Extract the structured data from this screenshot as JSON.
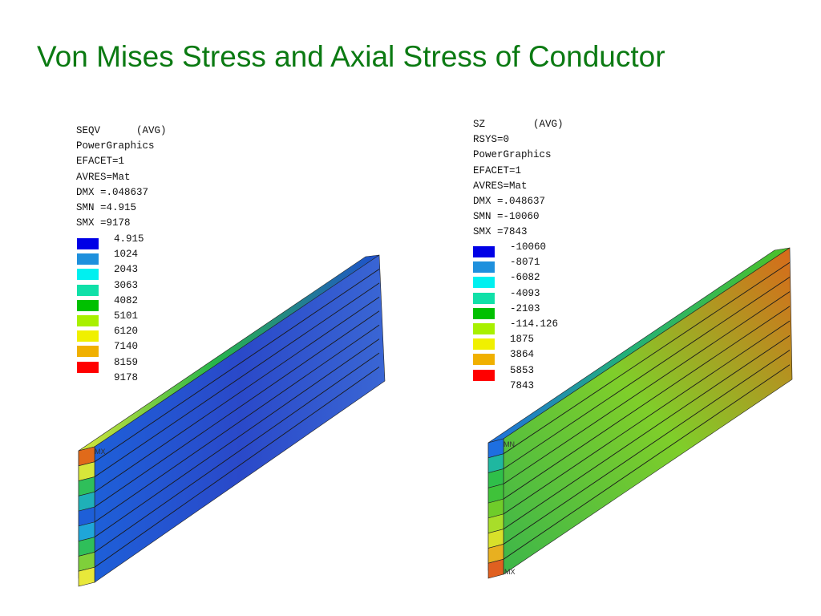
{
  "slide": {
    "title": "Von Mises Stress and Axial Stress of Conductor"
  },
  "plots": [
    {
      "id": "seqv",
      "info": [
        "SEQV      (AVG)",
        "PowerGraphics",
        "EFACET=1",
        "AVRES=Mat",
        "DMX =.048637",
        "SMN =4.915",
        "SMX =9178"
      ],
      "legend_values": [
        "4.915",
        "1024",
        "2043",
        "3063",
        "4082",
        "5101",
        "6120",
        "7140",
        "8159",
        "9178"
      ],
      "legend_colors": [
        "#0000e6",
        "#1e90dd",
        "#00f0f0",
        "#10e0a8",
        "#00c000",
        "#a8f000",
        "#f0f000",
        "#f0b000",
        "#ff0000"
      ],
      "node_tags": [
        "MX"
      ],
      "beam_colors": {
        "top_start": "#d6e63a",
        "top_mid": "#27b64a",
        "top_end": "#1e4fd0",
        "front_start": "#1e5fd8",
        "front_mid": "#2a49c9",
        "front_end": "#3a66d4"
      }
    },
    {
      "id": "sz",
      "info": [
        "SZ        (AVG)",
        "RSYS=0",
        "PowerGraphics",
        "EFACET=1",
        "AVRES=Mat",
        "DMX =.048637",
        "SMN =-10060",
        "SMX =7843"
      ],
      "legend_values": [
        "-10060",
        "-8071",
        "-6082",
        "-4093",
        "-2103",
        "-114.126",
        "1875",
        "3864",
        "5853",
        "7843"
      ],
      "legend_colors": [
        "#0000e6",
        "#1e90dd",
        "#00f0f0",
        "#10e0a8",
        "#00c000",
        "#a8f000",
        "#f0f000",
        "#f0b000",
        "#ff0000"
      ],
      "node_tags": [
        "MN",
        "MX"
      ],
      "beam_colors": {
        "top_start": "#1f6fe0",
        "top_mid": "#22b07a",
        "top_end": "#4cc227",
        "front_start": "#3cb64a",
        "front_mid": "#7fce2a",
        "front_end": "#d86a1a"
      }
    }
  ]
}
